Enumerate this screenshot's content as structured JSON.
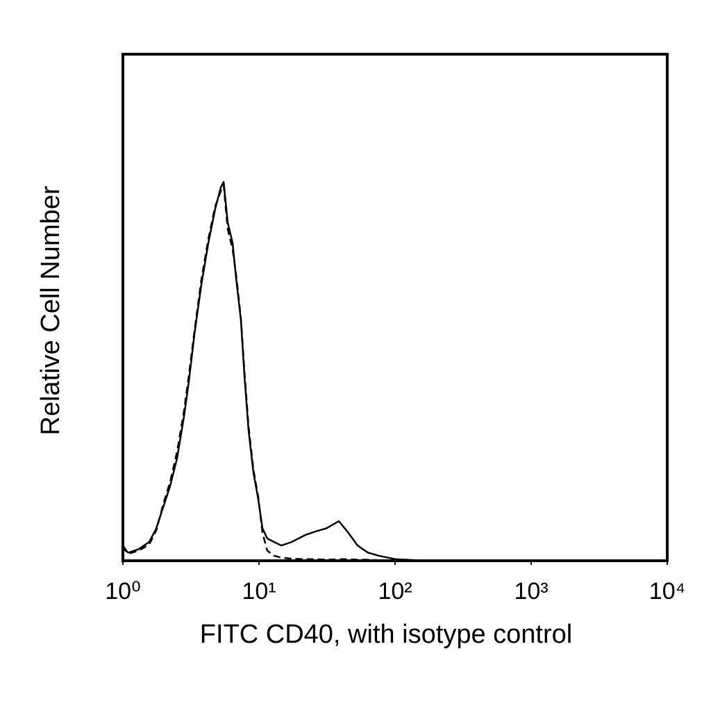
{
  "chart_data": {
    "type": "line",
    "x_label": "FITC CD40, with isotype control",
    "y_label": "Relative Cell Number",
    "x_log": true,
    "xlim": [
      1,
      10000
    ],
    "xticks": [
      {
        "value": 1,
        "label": "10⁰"
      },
      {
        "value": 10,
        "label": "10¹"
      },
      {
        "value": 100,
        "label": "10²"
      },
      {
        "value": 1000,
        "label": "10³"
      },
      {
        "value": 10000,
        "label": "10⁴"
      }
    ],
    "ylim": [
      0,
      100
    ],
    "x": [
      1.0,
      1.1,
      1.31,
      1.56,
      1.76,
      1.98,
      2.22,
      2.5,
      2.81,
      3.05,
      3.36,
      3.77,
      4.24,
      4.77,
      5.24,
      5.5,
      5.89,
      6.4,
      6.79,
      7.36,
      7.81,
      8.38,
      9.1,
      9.88,
      10.6,
      11.5,
      12.9,
      14.6,
      17.4,
      22,
      26.2,
      31.3,
      38.6,
      44.5,
      53,
      63.2,
      75.4,
      101,
      144,
      217
    ],
    "series": [
      {
        "color": "#000000",
        "dashed": false,
        "values": [
          2.3,
          1.6,
          2.3,
          3.7,
          6.4,
          10.6,
          14.7,
          20.2,
          28.4,
          35.3,
          44.9,
          54.5,
          62.7,
          69.5,
          73.7,
          74.8,
          66.8,
          62.7,
          55.8,
          47.6,
          36.6,
          25.7,
          17.4,
          12.1,
          6.4,
          4.4,
          3.7,
          3.0,
          3.7,
          5.1,
          5.8,
          6.4,
          7.8,
          5.8,
          3.0,
          1.6,
          1.0,
          0.3,
          0.1,
          0.1
        ]
      },
      {
        "color": "#000000",
        "dashed": true,
        "values": [
          3.0,
          1.4,
          2.0,
          3.2,
          6.0,
          11.2,
          15.5,
          21.5,
          29.5,
          36.5,
          45.5,
          55.5,
          63.5,
          70,
          73,
          74.2,
          65.5,
          61.5,
          56.5,
          48,
          37.5,
          26.5,
          18,
          12.5,
          5.5,
          2.0,
          1.0,
          0.6,
          0.4,
          0.3,
          0.3,
          0.2,
          0.3,
          0.3,
          0.2,
          0.2,
          0.1,
          0.1,
          0.1,
          0.1
        ]
      }
    ]
  }
}
